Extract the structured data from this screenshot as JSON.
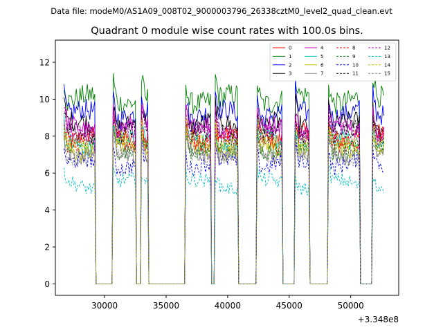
{
  "suptitle": "Data file: modeM0/AS1A09_008T02_9000003796_26338cztM0_level2_quad_clean.evt",
  "chart_data": {
    "type": "line",
    "title": "Quadrant 0 module wise count rates with 100.0s bins.",
    "xlabel": "",
    "ylabel": "",
    "x_offset_label": "+3.348e8",
    "xlim": [
      26000,
      53900
    ],
    "ylim": [
      -0.62,
      13.2
    ],
    "xticks": [
      30000,
      35000,
      40000,
      45000,
      50000
    ],
    "xtick_labels": [
      "30000",
      "35000",
      "40000",
      "45000",
      "50000"
    ],
    "yticks": [
      0,
      2,
      4,
      6,
      8,
      10,
      12
    ],
    "ytick_labels": [
      "0",
      "2",
      "4",
      "6",
      "8",
      "10",
      "12"
    ],
    "legend_location": "upper-right",
    "legend_columns": 4,
    "x_range": [
      26700,
      52700
    ],
    "bin_seconds": 100,
    "on_segments": [
      [
        26700,
        29200
      ],
      [
        30700,
        32500
      ],
      [
        33000,
        33500
      ],
      [
        36600,
        38600
      ],
      [
        39000,
        40800
      ],
      [
        42400,
        44400
      ],
      [
        45500,
        46600
      ],
      [
        48200,
        50700
      ],
      [
        51800,
        52700
      ]
    ],
    "series": [
      {
        "name": "0",
        "color": "#ff0000",
        "dash": false,
        "level": 8.0
      },
      {
        "name": "1",
        "color": "#008000",
        "dash": false,
        "level": 10.0
      },
      {
        "name": "2",
        "color": "#0000ff",
        "dash": false,
        "level": 9.2
      },
      {
        "name": "3",
        "color": "#000000",
        "dash": false,
        "level": 8.6
      },
      {
        "name": "4",
        "color": "#bf00bf",
        "dash": false,
        "level": 8.4
      },
      {
        "name": "5",
        "color": "#00bfbf",
        "dash": false,
        "level": 7.6
      },
      {
        "name": "6",
        "color": "#bfbf00",
        "dash": false,
        "level": 7.3
      },
      {
        "name": "7",
        "color": "#808080",
        "dash": false,
        "level": 7.1
      },
      {
        "name": "8",
        "color": "#ff0000",
        "dash": true,
        "level": 7.8
      },
      {
        "name": "9",
        "color": "#008000",
        "dash": true,
        "level": 7.4
      },
      {
        "name": "10",
        "color": "#0000ff",
        "dash": true,
        "level": 6.5
      },
      {
        "name": "11",
        "color": "#000000",
        "dash": true,
        "level": 8.1
      },
      {
        "name": "12",
        "color": "#bf00bf",
        "dash": true,
        "level": 8.2
      },
      {
        "name": "13",
        "color": "#00bfbf",
        "dash": true,
        "level": 5.4
      },
      {
        "name": "14",
        "color": "#bfbf00",
        "dash": true,
        "level": 7.6
      },
      {
        "name": "15",
        "color": "#808080",
        "dash": true,
        "level": 7.0
      }
    ]
  }
}
